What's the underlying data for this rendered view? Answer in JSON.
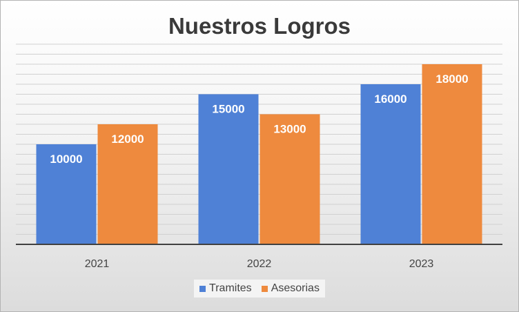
{
  "chart_data": {
    "type": "bar",
    "title": "Nuestros Logros",
    "categories": [
      "2021",
      "2022",
      "2023"
    ],
    "series": [
      {
        "name": "Tramites",
        "values": [
          10000,
          15000,
          16000
        ],
        "color": "#4f81d6"
      },
      {
        "name": "Asesorias",
        "values": [
          12000,
          13000,
          18000
        ],
        "color": "#ee8a3e"
      }
    ],
    "ylim": [
      0,
      20000
    ],
    "grid": true,
    "legend_position": "bottom",
    "xlabel": "",
    "ylabel": ""
  }
}
